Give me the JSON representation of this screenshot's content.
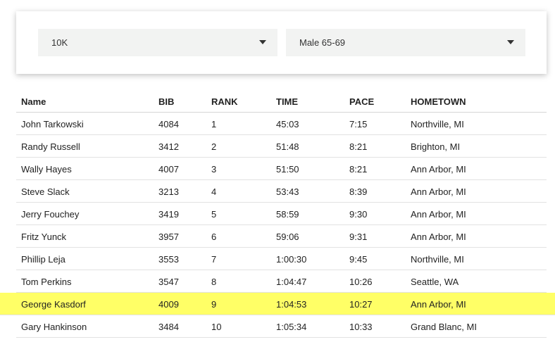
{
  "filters": [
    "10K",
    "Male 65-69"
  ],
  "table": {
    "headers": [
      "Name",
      "BIB",
      "RANK",
      "TIME",
      "PACE",
      "HOMETOWN"
    ],
    "rows": [
      [
        "John Tarkowski",
        "4084",
        "1",
        "45:03",
        "7:15",
        "Northville, MI"
      ],
      [
        "Randy Russell",
        "3412",
        "2",
        "51:48",
        "8:21",
        "Brighton, MI"
      ],
      [
        "Wally Hayes",
        "4007",
        "3",
        "51:50",
        "8:21",
        "Ann Arbor, MI"
      ],
      [
        "Steve Slack",
        "3213",
        "4",
        "53:43",
        "8:39",
        "Ann Arbor, MI"
      ],
      [
        "Jerry Fouchey",
        "3419",
        "5",
        "58:59",
        "9:30",
        "Ann Arbor, MI"
      ],
      [
        "Fritz Yunck",
        "3957",
        "6",
        "59:06",
        "9:31",
        "Ann Arbor, MI"
      ],
      [
        "Phillip Leja",
        "3553",
        "7",
        "1:00:30",
        "9:45",
        "Northville, MI"
      ],
      [
        "Tom Perkins",
        "3547",
        "8",
        "1:04:47",
        "10:26",
        "Seattle, WA"
      ],
      [
        "George Kasdorf",
        "4009",
        "9",
        "1:04:53",
        "10:27",
        "Ann Arbor, MI"
      ],
      [
        "Gary Hankinson",
        "3484",
        "10",
        "1:05:34",
        "10:33",
        "Grand Blanc, MI"
      ]
    ]
  }
}
